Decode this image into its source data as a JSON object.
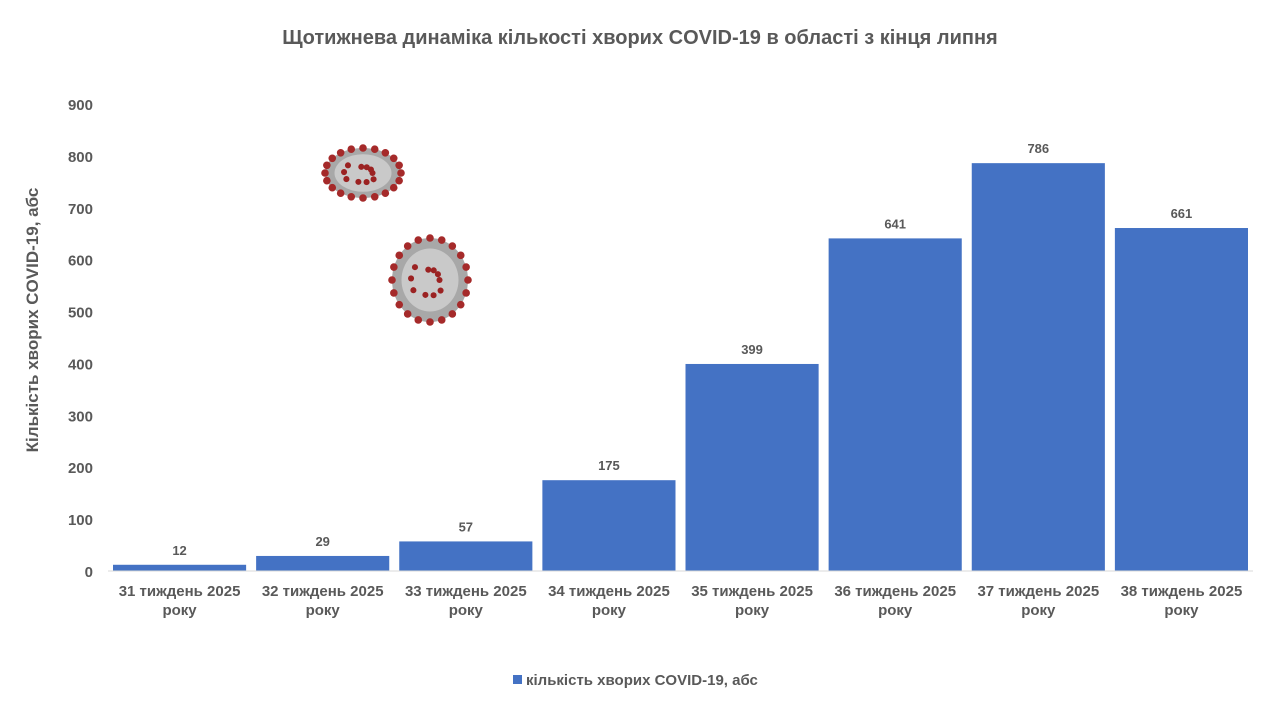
{
  "chart_data": {
    "type": "bar",
    "title": "Щотижнева динаміка кількості хворих COVID-19 в області з кінця липня",
    "xlabel": "",
    "ylabel": "Кількість хворих COVID-19, абс",
    "ylim": [
      0,
      900
    ],
    "yticks": [
      0,
      100,
      200,
      300,
      400,
      500,
      600,
      700,
      800,
      900
    ],
    "grid": false,
    "categories": [
      [
        "31 тиждень 2025",
        "року"
      ],
      [
        "32 тиждень 2025",
        "року"
      ],
      [
        "33 тиждень 2025",
        "року"
      ],
      [
        "34 тиждень 2025",
        "року"
      ],
      [
        "35 тиждень 2025",
        "року"
      ],
      [
        "36 тиждень 2025",
        "року"
      ],
      [
        "37 тиждень 2025",
        "року"
      ],
      [
        "38 тиждень 2025",
        "року"
      ]
    ],
    "series": [
      {
        "name": "кількість хворих COVID-19, абс",
        "color": "#4472C4",
        "values": [
          12,
          29,
          57,
          175,
          399,
          641,
          786,
          661
        ]
      }
    ],
    "legend_position": "bottom",
    "decorations": [
      "coronavirus-image",
      "coronavirus-image"
    ]
  }
}
